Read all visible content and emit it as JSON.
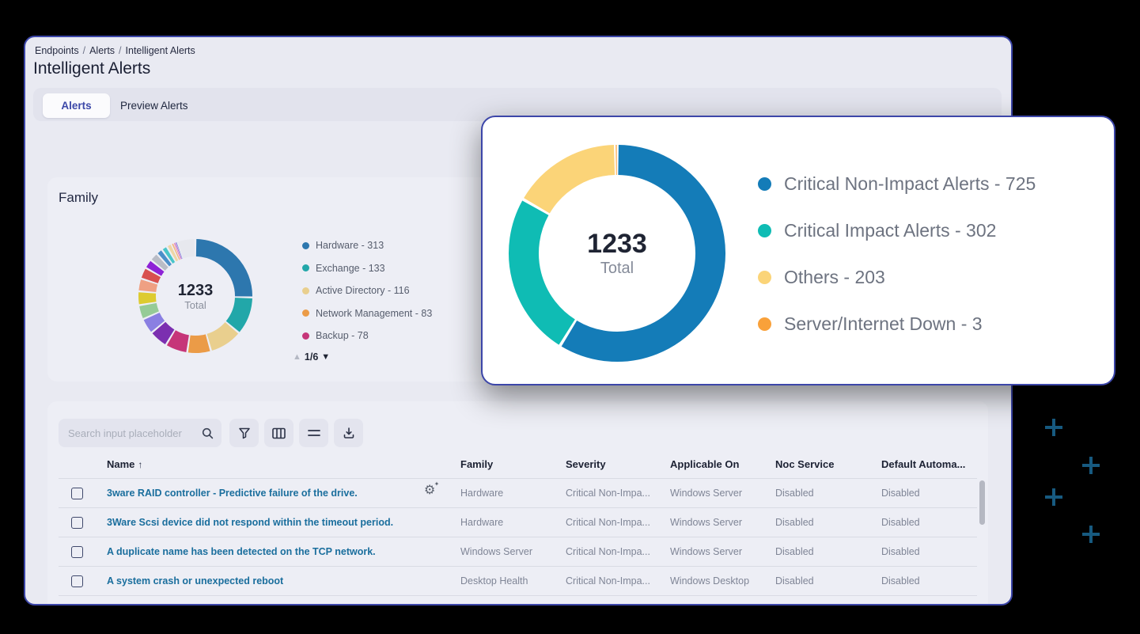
{
  "breadcrumb": {
    "items": [
      "Endpoints",
      "Alerts",
      "Intelligent Alerts"
    ],
    "separator": "/"
  },
  "page_title": "Intelligent Alerts",
  "tabs": {
    "alerts": "Alerts",
    "preview": "Preview Alerts"
  },
  "family_card": {
    "title": "Family",
    "pagination": {
      "up_icon": "▲",
      "label": "1/6",
      "down_icon": "▼"
    }
  },
  "chart_data": [
    {
      "type": "donut",
      "title": "Family",
      "center_value": "1233",
      "center_label": "Total",
      "total": 1233,
      "legend_position": "right",
      "legend_pages": "1/6",
      "legend_visible": [
        {
          "label": "Hardware",
          "value": 313,
          "color": "#2d77ae"
        },
        {
          "label": "Exchange",
          "value": 133,
          "color": "#22a7a9"
        },
        {
          "label": "Active Directory",
          "value": 116,
          "color": "#e9cf8e"
        },
        {
          "label": "Network Management",
          "value": 83,
          "color": "#eb9b47"
        },
        {
          "label": "Backup",
          "value": 78,
          "color": "#c63579"
        }
      ],
      "segments": [
        {
          "label": "Hardware",
          "value": 313,
          "color": "#2d77ae"
        },
        {
          "label": "Exchange",
          "value": 133,
          "color": "#22a7a9"
        },
        {
          "label": "Active Directory",
          "value": 116,
          "color": "#e9cf8e"
        },
        {
          "label": "Network Management",
          "value": 83,
          "color": "#eb9b47"
        },
        {
          "label": "Backup",
          "value": 78,
          "color": "#c63579"
        },
        {
          "value": 65,
          "color": "#7b2fb0"
        },
        {
          "value": 55,
          "color": "#8a7fe2"
        },
        {
          "value": 50,
          "color": "#96cb97"
        },
        {
          "value": 48,
          "color": "#ddcb30"
        },
        {
          "value": 45,
          "color": "#efa083"
        },
        {
          "value": 40,
          "color": "#d8504f"
        },
        {
          "value": 32,
          "color": "#8e22d6"
        },
        {
          "value": 30,
          "color": "#b9bcc6"
        },
        {
          "value": 22,
          "color": "#4b8fc9"
        },
        {
          "value": 20,
          "color": "#48c5c9"
        },
        {
          "value": 18,
          "color": "#eed6a5"
        },
        {
          "value": 8,
          "color": "#f4b67c"
        },
        {
          "value": 5,
          "color": "#e87fb3"
        },
        {
          "value": 4,
          "color": "#9b59d0"
        },
        {
          "value": 3,
          "color": "#7c8fdc"
        },
        {
          "value": 65,
          "color": "#e7e8ee"
        }
      ]
    },
    {
      "type": "donut",
      "center_value": "1233",
      "center_label": "Total",
      "total": 1233,
      "legend_position": "right",
      "legend_visible": [
        {
          "label": "Critical Non-Impact Alerts",
          "value": 725,
          "color": "#147cb8"
        },
        {
          "label": "Critical Impact Alerts",
          "value": 302,
          "color": "#0fbcb4"
        },
        {
          "label": "Others",
          "value": 203,
          "color": "#fbd478"
        },
        {
          "label": "Server/Internet Down",
          "value": 3,
          "color": "#f9a13a"
        }
      ],
      "segments": [
        {
          "label": "Critical Non-Impact Alerts",
          "value": 725,
          "color": "#147cb8"
        },
        {
          "label": "Critical Impact Alerts",
          "value": 302,
          "color": "#0fbcb4"
        },
        {
          "label": "Others",
          "value": 203,
          "color": "#fbd478"
        },
        {
          "label": "Server/Internet Down",
          "value": 3,
          "color": "#f9a13a"
        }
      ]
    }
  ],
  "toolbar": {
    "search_placeholder": "Search input placeholder",
    "icons": [
      "search-icon",
      "filter-icon",
      "columns-icon",
      "row-density-icon",
      "download-icon"
    ]
  },
  "table": {
    "columns": [
      {
        "label": "Name",
        "sort": "↑"
      },
      {
        "label": "Family"
      },
      {
        "label": "Severity"
      },
      {
        "label": "Applicable On"
      },
      {
        "label": "Noc Service"
      },
      {
        "label": "Default Automa..."
      }
    ],
    "rows": [
      {
        "name": "3ware RAID controller - Predictive failure of the drive.",
        "gear": true,
        "family": "Hardware",
        "severity": "Critical Non-Impa...",
        "applicable_on": "Windows Server",
        "noc_service": "Disabled",
        "default_automation": "Disabled"
      },
      {
        "name": "3Ware Scsi device did not respond within the timeout period.",
        "gear": false,
        "family": "Hardware",
        "severity": "Critical Non-Impa...",
        "applicable_on": "Windows Server",
        "noc_service": "Disabled",
        "default_automation": "Disabled"
      },
      {
        "name": "A duplicate name has been detected on the TCP network.",
        "gear": false,
        "family": "Windows Server",
        "severity": "Critical Non-Impa...",
        "applicable_on": "Windows Server",
        "noc_service": "Disabled",
        "default_automation": "Disabled"
      },
      {
        "name": "A system crash or unexpected reboot",
        "gear": false,
        "family": "Desktop Health",
        "severity": "Critical Non-Impa...",
        "applicable_on": "Windows Desktop",
        "noc_service": "Disabled",
        "default_automation": "Disabled"
      }
    ]
  },
  "colors": {
    "window_border": "#3c46a9",
    "plus_decoration": "#175a80",
    "link": "#1a6e9d"
  }
}
